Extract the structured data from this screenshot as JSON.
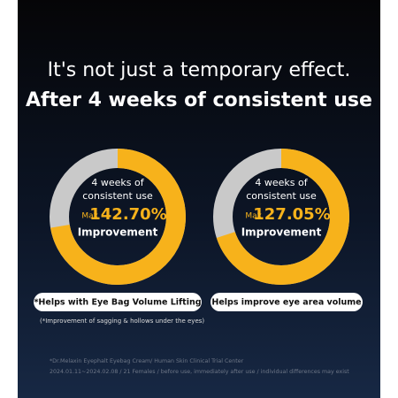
{
  "header": {
    "line1": "It's not just a temporary effect.",
    "line2": "After 4 weeks of consistent use"
  },
  "cards": [
    {
      "label_lines": [
        "4 weeks of",
        "consistent use"
      ],
      "prefix": "Max",
      "value": "142.70%",
      "caption": "Improvement",
      "badge": "*Helps with Eye Bag Volume Lifting"
    },
    {
      "label_lines": [
        "4 weeks of",
        "consistent use"
      ],
      "prefix": "Max",
      "value": "127.05%",
      "caption": "Improvement",
      "badge": "Helps improve eye area volume"
    }
  ],
  "note": "(*Improvement of sagging & hollows under the eyes)",
  "footer": [
    "*Dr.Melaxin Eyephalt Eyebag Cream/ Human Skin Clinical Trial Center",
    "2024.01.11~2024.02.08 / 21 Females / before use, immediately after use / individual differences may exist"
  ]
}
